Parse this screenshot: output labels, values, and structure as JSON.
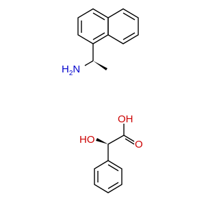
{
  "amine": {
    "hydrogen": "H",
    "subscript": "2",
    "nitrogen": "N"
  },
  "acid": {
    "hydroxyl": "OH",
    "alpha_hydroxyl": "HO",
    "carbonyl": "O"
  }
}
